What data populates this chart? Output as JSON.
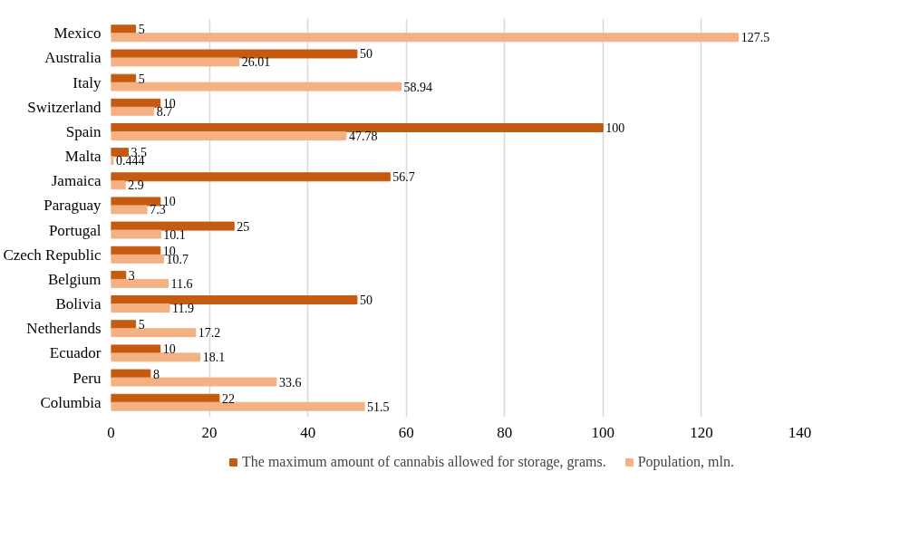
{
  "chart_data": {
    "type": "bar",
    "orientation": "horizontal",
    "categories": [
      "Mexico",
      "Australia",
      "Italy",
      "Switzerland",
      "Spain",
      "Malta",
      "Jamaica",
      "Paraguay",
      "Portugal",
      "Czech Republic",
      "Belgium",
      "Bolivia",
      "Netherlands",
      "Ecuador",
      "Peru",
      "Columbia"
    ],
    "series": [
      {
        "name": "The maximum amount of cannabis allowed for storage, grams.",
        "color": "#c55a11",
        "values": [
          5,
          50,
          5,
          10,
          100,
          3.5,
          56.7,
          10,
          25,
          10,
          3,
          50,
          5,
          10,
          8,
          22
        ]
      },
      {
        "name": "Population, mln.",
        "color": "#f4b183",
        "values": [
          127.5,
          26.01,
          58.94,
          8.7,
          47.78,
          0.444,
          2.9,
          7.3,
          10.1,
          10.7,
          11.6,
          11.9,
          17.2,
          18.1,
          33.6,
          51.5
        ]
      }
    ],
    "xlim": [
      0,
      140
    ],
    "xticks": [
      0,
      20,
      40,
      60,
      80,
      100,
      120,
      140
    ],
    "grid": "x",
    "legend": "bottom",
    "data_labels": true
  }
}
